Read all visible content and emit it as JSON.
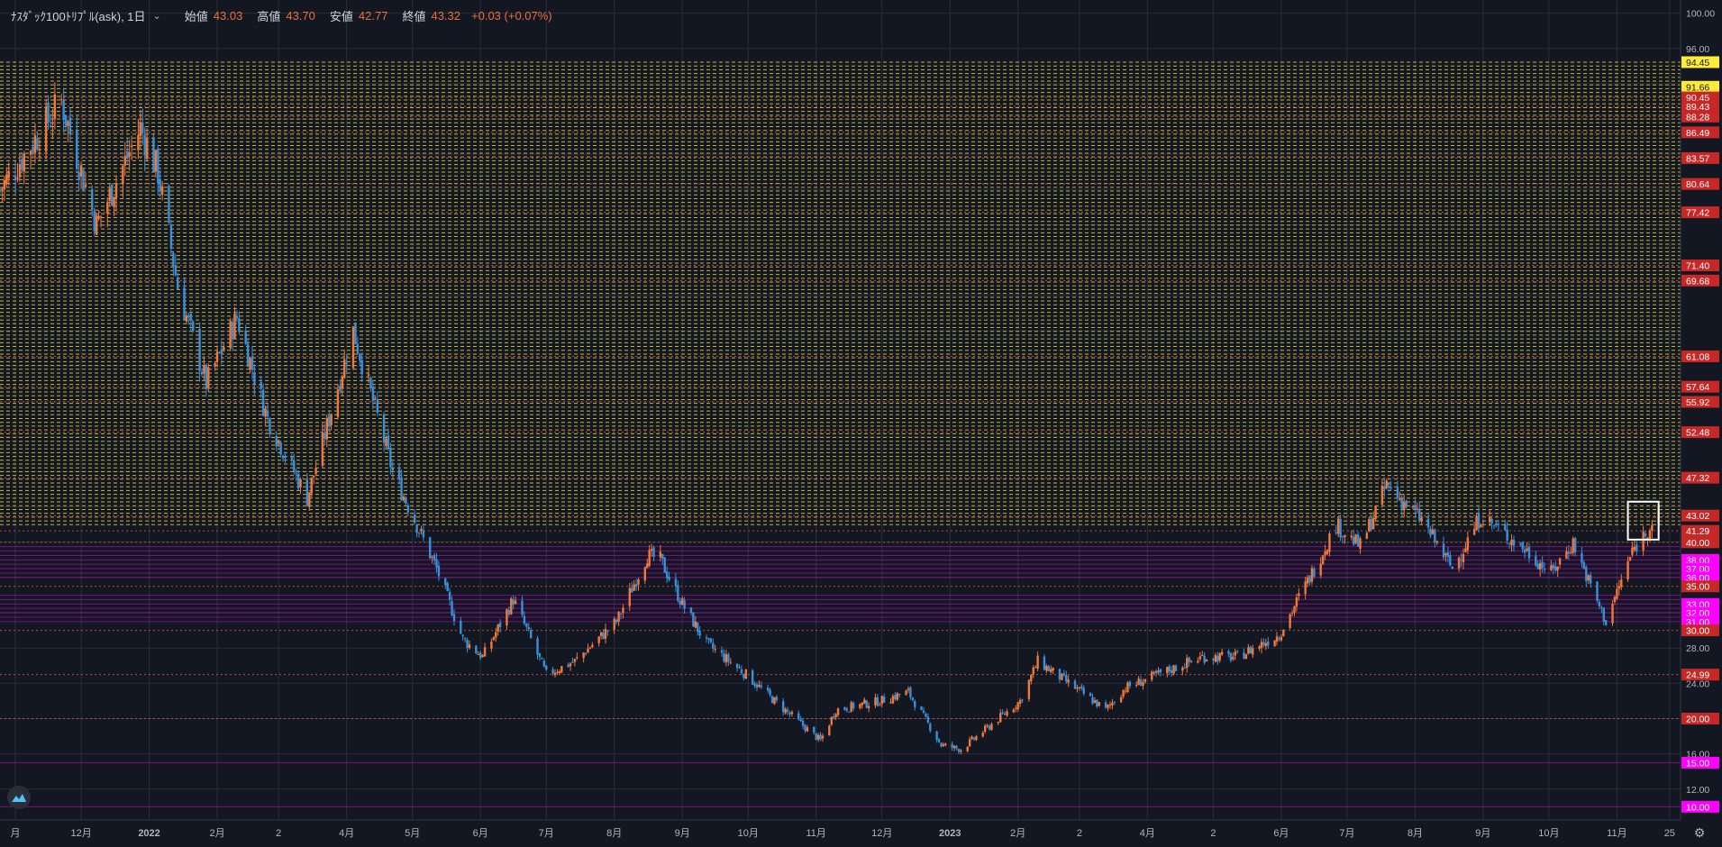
{
  "header": {
    "symbol": "ﾅｽﾀﾞｯｸ100ﾄﾘﾌﾟﾙ(ask), 1日",
    "open_label": "始値",
    "open": "43.03",
    "high_label": "高値",
    "high": "43.70",
    "low_label": "安値",
    "low": "42.77",
    "close_label": "終値",
    "close": "43.32",
    "change": "+0.03 (+0.07%)"
  },
  "colors": {
    "background": "#131722",
    "up_candle": "#f0793a",
    "down_candle": "#3a8fd9",
    "yellow_level": "#ffeb3b",
    "red_level": "#ef5350",
    "magenta_level": "#ff00ff",
    "price_label_red": "#c62828",
    "grid": "#2a2e39",
    "axis_text": "#b2b5be",
    "selection_box": "#ffffff"
  },
  "icons": {
    "logo": "tradingview-logo-icon",
    "settings": "gear-icon",
    "dropdown": "chevron-down-icon"
  },
  "chart_data": {
    "type": "candlestick",
    "grid": true,
    "ylim": [
      8.5,
      101.5
    ],
    "y_ticks": [
      "100.00",
      "96.00",
      "28.00",
      "24.00",
      "16.00",
      "12.00"
    ],
    "x_ticks": [
      "月",
      "12月",
      "2022",
      "2月",
      "2",
      "4月",
      "5月",
      "6月",
      "7月",
      "8月",
      "9月",
      "10月",
      "11月",
      "12月",
      "2023",
      "2月",
      "2",
      "4月",
      "2",
      "6月",
      "7月",
      "8月",
      "9月",
      "10月",
      "11月",
      "25"
    ],
    "x_range": [
      "2021-10-25",
      "2023-11-30"
    ],
    "x_tick_dates": [
      "2021-11-01",
      "2021-12-01",
      "2022-01-01",
      "2022-02-01",
      "2022-03-01",
      "2022-04-01",
      "2022-05-01",
      "2022-06-01",
      "2022-07-01",
      "2022-08-01",
      "2022-09-01",
      "2022-10-01",
      "2022-11-01",
      "2022-12-01",
      "2023-01-01",
      "2023-02-01",
      "2023-03-01",
      "2023-04-01",
      "2023-05-01",
      "2023-06-01",
      "2023-07-01",
      "2023-08-01",
      "2023-09-01",
      "2023-10-01",
      "2023-11-01",
      "2023-11-25"
    ],
    "price_path": {
      "dates": [
        "2021-10-25",
        "2021-11-22",
        "2021-12-08",
        "2021-12-28",
        "2022-01-05",
        "2022-01-14",
        "2022-01-27",
        "2022-02-10",
        "2022-02-24",
        "2022-03-14",
        "2022-04-04",
        "2022-04-22",
        "2022-05-12",
        "2022-05-24",
        "2022-06-02",
        "2022-06-16",
        "2022-07-01",
        "2022-07-14",
        "2022-08-02",
        "2022-08-16",
        "2022-08-22",
        "2022-09-01",
        "2022-09-12",
        "2022-09-30",
        "2022-10-13",
        "2022-11-03",
        "2022-11-10",
        "2022-11-30",
        "2022-12-13",
        "2022-12-28",
        "2023-01-06",
        "2023-02-02",
        "2023-02-10",
        "2023-03-13",
        "2023-03-22",
        "2023-04-26",
        "2023-05-12",
        "2023-05-31",
        "2023-06-15",
        "2023-06-26",
        "2023-07-07",
        "2023-07-19",
        "2023-08-04",
        "2023-08-18",
        "2023-08-31",
        "2023-09-21",
        "2023-10-02",
        "2023-10-12",
        "2023-10-20",
        "2023-10-27",
        "2023-11-08",
        "2023-11-20"
      ],
      "close": [
        80.0,
        90.0,
        76.0,
        87.0,
        82.0,
        69.0,
        58.0,
        65.5,
        54.0,
        45.0,
        64.0,
        48.0,
        37.0,
        29.0,
        27.0,
        33.5,
        25.0,
        26.5,
        31.0,
        38.5,
        38.0,
        33.0,
        28.5,
        25.0,
        22.0,
        17.5,
        21.0,
        22.0,
        23.0,
        17.0,
        16.5,
        22.0,
        26.5,
        21.0,
        23.5,
        27.0,
        27.0,
        29.5,
        36.5,
        42.0,
        39.5,
        46.5,
        42.5,
        37.0,
        43.0,
        39.0,
        36.5,
        40.0,
        35.0,
        31.0,
        39.0,
        43.3
      ],
      "candle_interval_days": 1
    },
    "price_labels": [
      {
        "price": "100.00",
        "color": "none"
      },
      {
        "price": "96.00",
        "color": "none"
      },
      {
        "price": "94.45",
        "color": "yellow"
      },
      {
        "price": "91.66",
        "color": "yellow"
      },
      {
        "price": "90.45",
        "color": "red"
      },
      {
        "price": "89.43",
        "color": "red"
      },
      {
        "price": "88.28",
        "color": "red"
      },
      {
        "price": "86.49",
        "color": "red"
      },
      {
        "price": "83.57",
        "color": "red"
      },
      {
        "price": "80.64",
        "color": "red"
      },
      {
        "price": "77.42",
        "color": "red"
      },
      {
        "price": "71.40",
        "color": "red"
      },
      {
        "price": "69.68",
        "color": "red"
      },
      {
        "price": "61.08",
        "color": "red"
      },
      {
        "price": "57.64",
        "color": "red"
      },
      {
        "price": "55.92",
        "color": "red"
      },
      {
        "price": "52.48",
        "color": "red"
      },
      {
        "price": "47.32",
        "color": "red"
      },
      {
        "price": "43.02",
        "color": "red"
      },
      {
        "price": "41.29",
        "color": "red"
      },
      {
        "price": "40.00",
        "color": "red"
      },
      {
        "price": "38.00",
        "color": "magenta"
      },
      {
        "price": "37.00",
        "color": "magenta"
      },
      {
        "price": "36.00",
        "color": "magenta"
      },
      {
        "price": "35.00",
        "color": "red"
      },
      {
        "price": "33.00",
        "color": "magenta"
      },
      {
        "price": "32.00",
        "color": "magenta"
      },
      {
        "price": "31.00",
        "color": "magenta"
      },
      {
        "price": "30.00",
        "color": "red"
      },
      {
        "price": "28.00",
        "color": "none"
      },
      {
        "price": "24.99",
        "color": "red"
      },
      {
        "price": "24.00",
        "color": "none"
      },
      {
        "price": "20.00",
        "color": "red"
      },
      {
        "price": "16.00",
        "color": "none"
      },
      {
        "price": "15.00",
        "color": "magenta"
      },
      {
        "price": "12.00",
        "color": "none"
      },
      {
        "price": "10.00",
        "color": "magenta"
      }
    ],
    "horizontal_levels": {
      "yellow_dashed": {
        "from": 41.7,
        "to": 94.45,
        "step": 0.43
      },
      "red_dotted": [
        90.45,
        89.43,
        88.28,
        86.49,
        83.57,
        80.64,
        77.42,
        71.4,
        69.68,
        61.08,
        57.64,
        55.92,
        52.48,
        47.32,
        43.02,
        41.29,
        40.0,
        35.0,
        30.0,
        24.99,
        20.0
      ],
      "magenta_solid": [
        39.5,
        39.0,
        38.5,
        38.0,
        37.5,
        37.0,
        36.5,
        36.0,
        34.0,
        33.5,
        33.0,
        32.5,
        32.0,
        31.5,
        31.0,
        15.0,
        10.0
      ]
    },
    "annotations": [
      {
        "type": "rectangle",
        "x": [
          "2023-11-06",
          "2023-11-20"
        ],
        "y": [
          40.3,
          44.6
        ],
        "label": ""
      }
    ]
  }
}
